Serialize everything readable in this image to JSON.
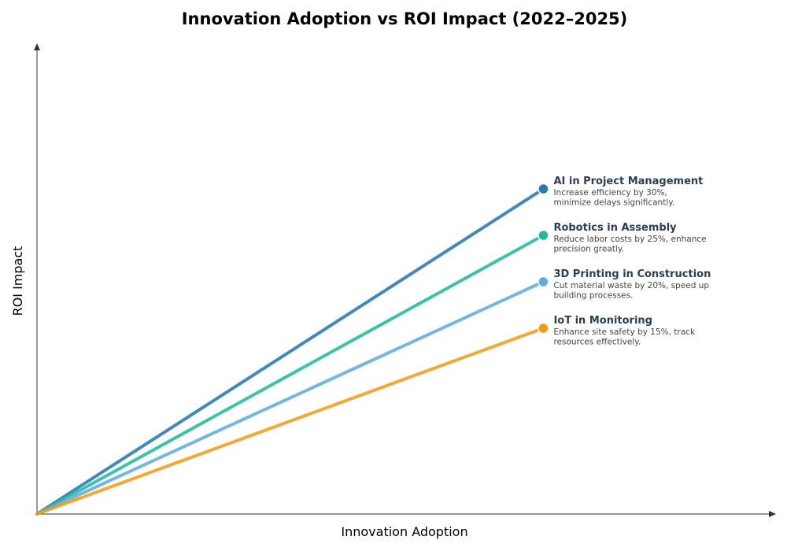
{
  "chart_data": {
    "type": "line",
    "title": "Innovation Adoption vs ROI Impact (2022–2025)",
    "xlabel": "Innovation Adoption",
    "ylabel": "ROI Impact",
    "xlim": [
      0,
      1.45
    ],
    "ylim": [
      0,
      1.0
    ],
    "grid": false,
    "legend": "annotations at line ends",
    "series": [
      {
        "name": "AI in Project Management",
        "description_lines": [
          "Increase efficiency by 30%,",
          "minimize delays significantly."
        ],
        "color": "#2479b5",
        "x": [
          0,
          1.0
        ],
        "y": [
          0,
          0.7
        ]
      },
      {
        "name": "Robotics in Assembly",
        "description_lines": [
          "Reduce labor costs by 25%, enhance",
          "precision greatly."
        ],
        "color": "#1fbc9a",
        "x": [
          0,
          1.0
        ],
        "y": [
          0,
          0.6
        ]
      },
      {
        "name": "3D Printing in Construction",
        "description_lines": [
          "Cut material waste by 20%, speed up",
          "building processes."
        ],
        "color": "#5dade2",
        "x": [
          0,
          1.0
        ],
        "y": [
          0,
          0.5
        ]
      },
      {
        "name": "IoT in Monitoring",
        "description_lines": [
          "Enhance site safety by 15%, track",
          "resources effectively."
        ],
        "color": "#f39c12",
        "x": [
          0,
          1.0
        ],
        "y": [
          0,
          0.4
        ]
      }
    ]
  }
}
